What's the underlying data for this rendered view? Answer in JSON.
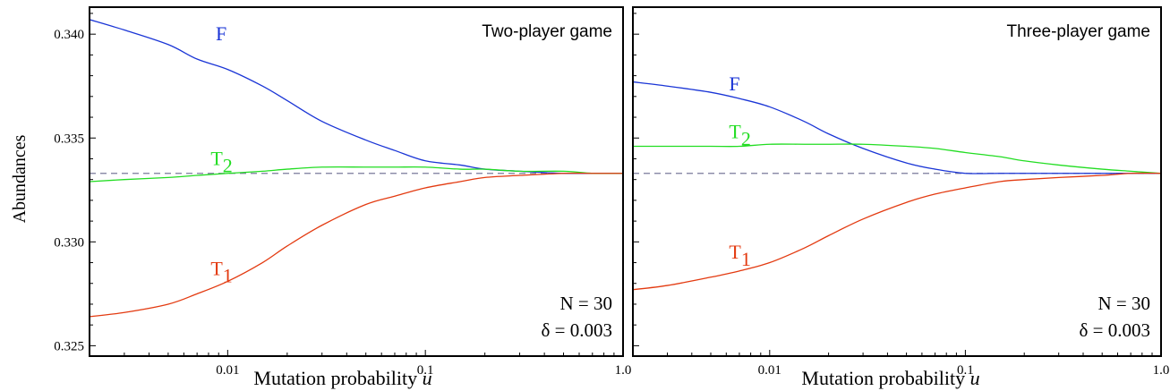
{
  "figure": {
    "ylabel": "Abundances",
    "xlabel_text": "Mutation probability ",
    "xlabel_var": "u"
  },
  "chart_data": [
    {
      "type": "line",
      "title": "Two-player game",
      "xscale": "log",
      "xlim": [
        0.002,
        1.0
      ],
      "ylim": [
        0.3245,
        0.3413
      ],
      "xticks": [
        0.01,
        0.1,
        1.0
      ],
      "xtick_labels": [
        "0.01",
        "0.1",
        "1.0"
      ],
      "yticks": [
        0.325,
        0.33,
        0.335,
        0.34
      ],
      "ytick_labels": [
        "0.325",
        "0.330",
        "0.335",
        "0.340"
      ],
      "reference_line": {
        "y": 0.3333,
        "style": "dashed",
        "color": "#7a7a9a"
      },
      "annotations": {
        "N": "N = 30",
        "delta": "δ = 0.003"
      },
      "series": [
        {
          "name": "F",
          "label_main": "F",
          "label_sub": "",
          "color": "#1a35d6",
          "x": [
            0.002,
            0.003,
            0.005,
            0.007,
            0.01,
            0.015,
            0.02,
            0.03,
            0.05,
            0.07,
            0.1,
            0.15,
            0.2,
            0.3,
            0.5,
            0.7,
            1.0
          ],
          "y": [
            0.3407,
            0.3402,
            0.3395,
            0.3388,
            0.3383,
            0.3375,
            0.3368,
            0.3358,
            0.3349,
            0.3344,
            0.3339,
            0.3337,
            0.3335,
            0.3334,
            0.3333,
            0.3333,
            0.3333
          ]
        },
        {
          "name": "T2",
          "label_main": "T",
          "label_sub": "2",
          "color": "#22dd22",
          "x": [
            0.002,
            0.003,
            0.005,
            0.007,
            0.01,
            0.015,
            0.02,
            0.03,
            0.05,
            0.07,
            0.1,
            0.15,
            0.2,
            0.3,
            0.5,
            0.7,
            1.0
          ],
          "y": [
            0.3329,
            0.333,
            0.3331,
            0.3332,
            0.3333,
            0.3334,
            0.3335,
            0.3336,
            0.3336,
            0.3336,
            0.3336,
            0.3335,
            0.3335,
            0.3334,
            0.3334,
            0.3333,
            0.3333
          ]
        },
        {
          "name": "T1",
          "label_main": "T",
          "label_sub": "1",
          "color": "#e33a10",
          "x": [
            0.002,
            0.003,
            0.005,
            0.007,
            0.01,
            0.015,
            0.02,
            0.03,
            0.05,
            0.07,
            0.1,
            0.15,
            0.2,
            0.3,
            0.5,
            0.7,
            1.0
          ],
          "y": [
            0.3264,
            0.3266,
            0.327,
            0.3275,
            0.3281,
            0.329,
            0.3298,
            0.3308,
            0.3318,
            0.3322,
            0.3326,
            0.3329,
            0.3331,
            0.3332,
            0.3333,
            0.3333,
            0.3333
          ]
        }
      ],
      "label_positions": [
        {
          "series": "F",
          "x": 0.0087,
          "y": 0.3397
        },
        {
          "series": "T2",
          "x": 0.0082,
          "y": 0.3337
        },
        {
          "series": "T1",
          "x": 0.0082,
          "y": 0.3284
        }
      ]
    },
    {
      "type": "line",
      "title": "Three-player game",
      "xscale": "log",
      "xlim": [
        0.002,
        1.0
      ],
      "ylim": [
        0.3245,
        0.3413
      ],
      "xticks": [
        0.01,
        0.1,
        1.0
      ],
      "xtick_labels": [
        "0.01",
        "0.1",
        "1.0"
      ],
      "yticks": [
        0.325,
        0.33,
        0.335,
        0.34
      ],
      "ytick_labels": [],
      "reference_line": {
        "y": 0.3333,
        "style": "dashed",
        "color": "#7a7a9a"
      },
      "annotations": {
        "N": "N = 30",
        "delta": "δ = 0.003"
      },
      "series": [
        {
          "name": "F",
          "label_main": "F",
          "label_sub": "",
          "color": "#1a35d6",
          "x": [
            0.002,
            0.003,
            0.005,
            0.007,
            0.01,
            0.015,
            0.02,
            0.03,
            0.05,
            0.07,
            0.1,
            0.15,
            0.2,
            0.3,
            0.5,
            0.7,
            1.0
          ],
          "y": [
            0.3377,
            0.3375,
            0.3372,
            0.3369,
            0.3365,
            0.3358,
            0.3352,
            0.3345,
            0.3338,
            0.3335,
            0.3333,
            0.3333,
            0.3333,
            0.3333,
            0.3333,
            0.3333,
            0.3333
          ]
        },
        {
          "name": "T2",
          "label_main": "T",
          "label_sub": "2",
          "color": "#22dd22",
          "x": [
            0.002,
            0.003,
            0.005,
            0.007,
            0.01,
            0.015,
            0.02,
            0.03,
            0.05,
            0.07,
            0.1,
            0.15,
            0.2,
            0.3,
            0.5,
            0.7,
            1.0
          ],
          "y": [
            0.3346,
            0.3346,
            0.3346,
            0.3346,
            0.3347,
            0.3347,
            0.3347,
            0.3347,
            0.3346,
            0.3345,
            0.3343,
            0.3341,
            0.3339,
            0.3337,
            0.3335,
            0.3334,
            0.3333
          ]
        },
        {
          "name": "T1",
          "label_main": "T",
          "label_sub": "1",
          "color": "#e33a10",
          "x": [
            0.002,
            0.003,
            0.005,
            0.007,
            0.01,
            0.015,
            0.02,
            0.03,
            0.05,
            0.07,
            0.1,
            0.15,
            0.2,
            0.3,
            0.5,
            0.7,
            1.0
          ],
          "y": [
            0.3277,
            0.3279,
            0.3283,
            0.3286,
            0.329,
            0.3297,
            0.3303,
            0.3311,
            0.3319,
            0.3323,
            0.3326,
            0.3329,
            0.333,
            0.3331,
            0.3332,
            0.3333,
            0.3333
          ]
        }
      ],
      "label_positions": [
        {
          "series": "F",
          "x": 0.0062,
          "y": 0.3373
        },
        {
          "series": "T2",
          "x": 0.0062,
          "y": 0.335
        },
        {
          "series": "T1",
          "x": 0.0062,
          "y": 0.3292
        }
      ]
    }
  ]
}
